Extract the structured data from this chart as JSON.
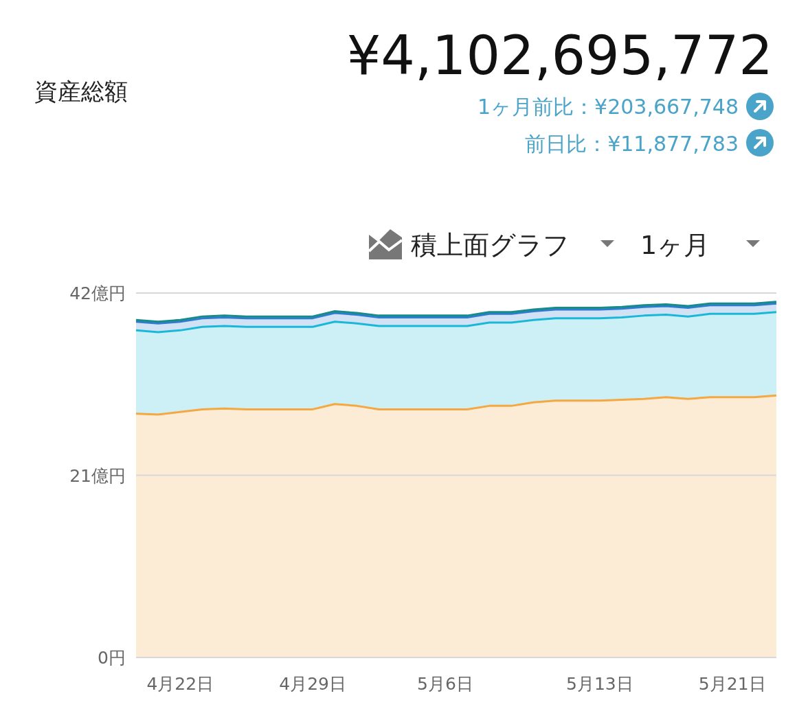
{
  "chart_data": {
    "type": "area",
    "stacked": true,
    "title": "資産総額",
    "subtitle": "¥4,102,695,772",
    "annotations": [
      "1ヶ月前比：¥203,667,748",
      "前日比：¥11,877,783",
      "積上面グラフ",
      "1ヶ月"
    ],
    "categories": [
      null,
      null,
      "4月22日",
      null,
      null,
      null,
      null,
      null,
      "4月29日",
      null,
      null,
      null,
      null,
      null,
      "5月6日",
      null,
      null,
      null,
      null,
      null,
      null,
      "5月13日",
      null,
      null,
      null,
      null,
      null,
      "5月21日",
      null,
      null
    ],
    "series": [
      {
        "color": "#f5a742",
        "values": [
          28.1,
          28.0,
          28.3,
          28.6,
          28.7,
          28.6,
          28.6,
          28.6,
          28.6,
          29.2,
          29.0,
          28.6,
          28.6,
          28.6,
          28.6,
          28.6,
          29.0,
          29.0,
          29.4,
          29.6,
          29.6,
          29.6,
          29.7,
          29.8,
          30.0,
          29.8,
          30.0,
          30.0,
          30.0,
          30.2
        ]
      },
      {
        "color": "#1ab8d8",
        "values": [
          9.6,
          9.5,
          9.4,
          9.5,
          9.5,
          9.5,
          9.5,
          9.5,
          9.5,
          9.5,
          9.5,
          9.6,
          9.6,
          9.6,
          9.6,
          9.6,
          9.6,
          9.6,
          9.5,
          9.5,
          9.5,
          9.5,
          9.5,
          9.6,
          9.5,
          9.5,
          9.6,
          9.6,
          9.6,
          9.6
        ]
      },
      {
        "color": "#2f7bd1",
        "values": [
          1.0,
          1.0,
          1.0,
          1.0,
          1.0,
          1.0,
          1.0,
          1.0,
          1.0,
          1.0,
          1.0,
          1.0,
          1.0,
          1.0,
          1.0,
          1.0,
          1.0,
          1.0,
          1.0,
          1.0,
          1.0,
          1.0,
          1.0,
          1.0,
          1.0,
          1.0,
          1.0,
          1.0,
          1.0,
          1.0
        ]
      },
      {
        "color": "#178a8a",
        "values": [
          0.2,
          0.2,
          0.2,
          0.2,
          0.2,
          0.2,
          0.2,
          0.2,
          0.2,
          0.2,
          0.2,
          0.2,
          0.2,
          0.2,
          0.2,
          0.2,
          0.2,
          0.2,
          0.2,
          0.2,
          0.2,
          0.2,
          0.2,
          0.2,
          0.2,
          0.2,
          0.2,
          0.2,
          0.2,
          0.2
        ]
      }
    ],
    "ylim": [
      0,
      42
    ],
    "yticks": [
      {
        "value": 0,
        "label": "0円"
      },
      {
        "value": 21,
        "label": "21億円"
      },
      {
        "value": 42,
        "label": "42億円"
      }
    ],
    "grid": "y"
  }
}
